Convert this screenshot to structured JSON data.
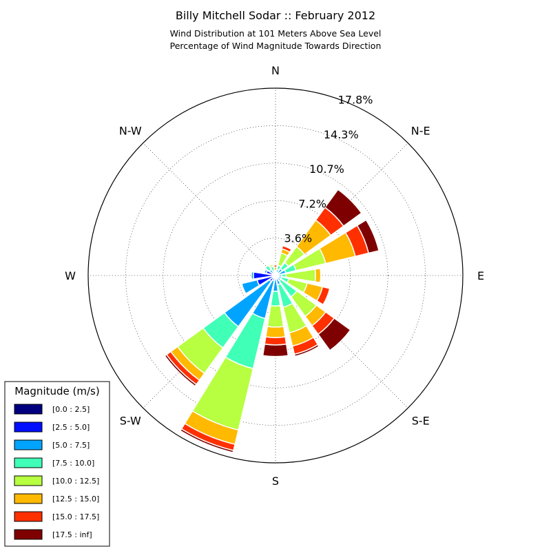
{
  "chart_data": {
    "type": "windrose",
    "title": "Billy Mitchell Sodar :: February 2012",
    "subtitle_lines": [
      "Wind Distribution at 101 Meters Above Sea Level",
      "Percentage of Wind Magnitude Towards Direction"
    ],
    "direction_labels": [
      {
        "label": "N",
        "deg": 0
      },
      {
        "label": "N-E",
        "deg": 45
      },
      {
        "label": "E",
        "deg": 90
      },
      {
        "label": "S-E",
        "deg": 135
      },
      {
        "label": "S",
        "deg": 180
      },
      {
        "label": "S-W",
        "deg": 225
      },
      {
        "label": "W",
        "deg": 270
      },
      {
        "label": "N-W",
        "deg": 315
      }
    ],
    "radial_ticks": [
      "3.6%",
      "7.2%",
      "10.7%",
      "14.3%",
      "17.8%"
    ],
    "radial_tick_values": [
      3.56,
      7.12,
      10.68,
      14.24,
      17.8
    ],
    "r_max": 17.8,
    "sector_count": 16,
    "legend": {
      "title": "Magnitude (m/s)",
      "bins": [
        {
          "label": "[0.0 : 2.5]",
          "color": "#00007f"
        },
        {
          "label": "[2.5 : 5.0]",
          "color": "#0010ff"
        },
        {
          "label": "[5.0 : 7.5]",
          "color": "#00a4ff"
        },
        {
          "label": "[7.5 : 10.0]",
          "color": "#40ffb7"
        },
        {
          "label": "[10.0 : 12.5]",
          "color": "#b7ff40"
        },
        {
          "label": "[12.5 : 15.0]",
          "color": "#ffb900"
        },
        {
          "label": "[15.0 : 17.5]",
          "color": "#ff3000"
        },
        {
          "label": "[17.5 : inf]",
          "color": "#7f0000"
        }
      ]
    },
    "sectors": [
      {
        "direction_deg": 0,
        "cumulative": [
          0.1,
          0.2,
          0.3,
          0.4,
          0.5,
          0.8,
          1.0,
          1.1
        ]
      },
      {
        "direction_deg": 22.5,
        "cumulative": [
          0.1,
          0.3,
          0.6,
          1.0,
          2.2,
          2.6,
          2.9,
          2.9
        ]
      },
      {
        "direction_deg": 45,
        "cumulative": [
          0.1,
          0.3,
          0.8,
          1.5,
          3.4,
          6.5,
          8.0,
          10.1
        ]
      },
      {
        "direction_deg": 67.5,
        "cumulative": [
          0.2,
          0.4,
          1.0,
          2.0,
          4.9,
          7.8,
          9.1,
          10.1
        ]
      },
      {
        "direction_deg": 90,
        "cumulative": [
          0.1,
          0.3,
          0.6,
          1.0,
          3.8,
          4.3,
          4.3,
          4.3
        ]
      },
      {
        "direction_deg": 112.5,
        "cumulative": [
          0.1,
          0.3,
          0.6,
          1.3,
          3.1,
          4.6,
          5.3,
          5.3
        ]
      },
      {
        "direction_deg": 135,
        "cumulative": [
          0.1,
          0.3,
          0.6,
          2.5,
          4.8,
          5.9,
          6.9,
          8.8
        ]
      },
      {
        "direction_deg": 157.5,
        "cumulative": [
          0.1,
          0.3,
          0.9,
          3.1,
          5.6,
          6.9,
          7.7,
          7.9
        ]
      },
      {
        "direction_deg": 180,
        "cumulative": [
          0.1,
          0.3,
          1.5,
          2.9,
          4.9,
          5.9,
          6.6,
          7.7
        ]
      },
      {
        "direction_deg": 202.5,
        "cumulative": [
          0.2,
          0.5,
          4.2,
          9.1,
          15.1,
          16.5,
          17.1,
          17.3
        ]
      },
      {
        "direction_deg": 225,
        "cumulative": [
          0.2,
          0.7,
          6.0,
          8.5,
          11.5,
          12.3,
          12.8,
          13.0
        ]
      },
      {
        "direction_deg": 247.5,
        "cumulative": [
          0.2,
          1.8,
          3.3,
          3.3,
          3.3,
          3.3,
          3.3,
          3.3
        ]
      },
      {
        "direction_deg": 270,
        "cumulative": [
          0.2,
          2.1,
          2.3,
          2.3,
          2.3,
          2.3,
          2.3,
          2.3
        ]
      },
      {
        "direction_deg": 292.5,
        "cumulative": [
          0.1,
          0.9,
          1.1,
          1.2,
          1.3,
          1.3,
          1.3,
          1.3
        ]
      },
      {
        "direction_deg": 315,
        "cumulative": [
          0.1,
          0.3,
          0.7,
          1.2,
          1.2,
          1.2,
          1.2,
          1.2
        ]
      },
      {
        "direction_deg": 337.5,
        "cumulative": [
          0.1,
          0.2,
          0.4,
          0.9,
          1.1,
          1.2,
          1.2,
          1.2
        ]
      }
    ],
    "grid": true,
    "legend_placement": "bottom-left"
  }
}
